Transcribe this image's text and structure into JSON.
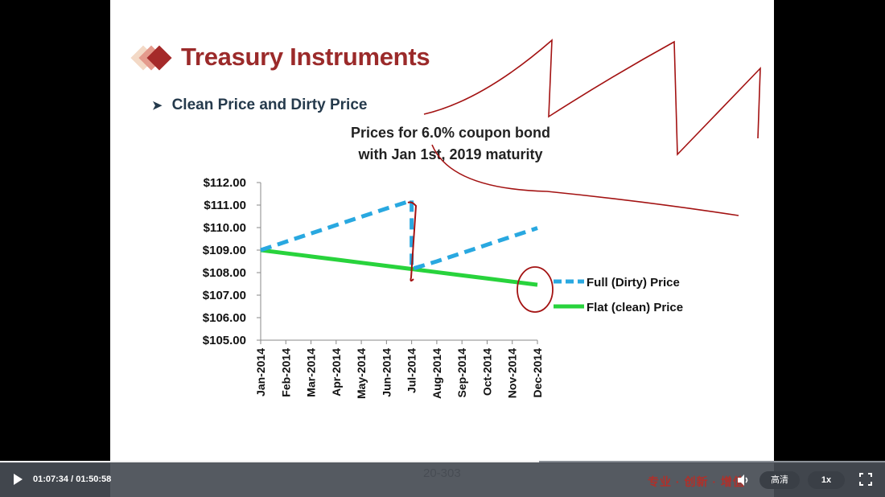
{
  "slide": {
    "title": "Treasury Instruments",
    "bullet": "Clean Price and Dirty Price",
    "page_number": "20-303"
  },
  "chart_data": {
    "type": "line",
    "title_line1": "Prices for 6.0% coupon  bond",
    "title_line2": "with Jan 1st, 2019 maturity",
    "categories": [
      "Jan-2014",
      "Feb-2014",
      "Mar-2014",
      "Apr-2014",
      "May-2014",
      "Jun-2014",
      "Jul-2014",
      "Aug-2014",
      "Sep-2014",
      "Oct-2014",
      "Nov-2014",
      "Dec-2014"
    ],
    "y_ticks": [
      "$112.00",
      "$111.00",
      "$110.00",
      "$109.00",
      "$108.00",
      "$107.00",
      "$106.00",
      "$105.00"
    ],
    "ylim": [
      105,
      112
    ],
    "legend_position": "right",
    "series": [
      {
        "name": "Full (Dirty) Price",
        "color": "#29a8e0",
        "style": "dashed",
        "values": [
          109.0,
          109.37,
          109.74,
          110.11,
          110.48,
          110.85,
          111.2,
          108.5,
          108.87,
          109.24,
          109.61,
          109.98
        ]
      },
      {
        "name": "Flat (clean) Price",
        "color": "#28d33c",
        "style": "solid",
        "values": [
          109.0,
          108.86,
          108.72,
          108.58,
          108.44,
          108.3,
          108.16,
          108.02,
          107.88,
          107.74,
          107.6,
          107.46
        ]
      }
    ]
  },
  "player": {
    "time_display": "01:07:34 / 01:50:58",
    "progress": 0.609,
    "logo_text": "专业 · 创新 · 增值",
    "quality_label": "高清",
    "speed_label": "1x"
  },
  "colors": {
    "title": "#9b2a2a",
    "annotation": "#a31212"
  }
}
